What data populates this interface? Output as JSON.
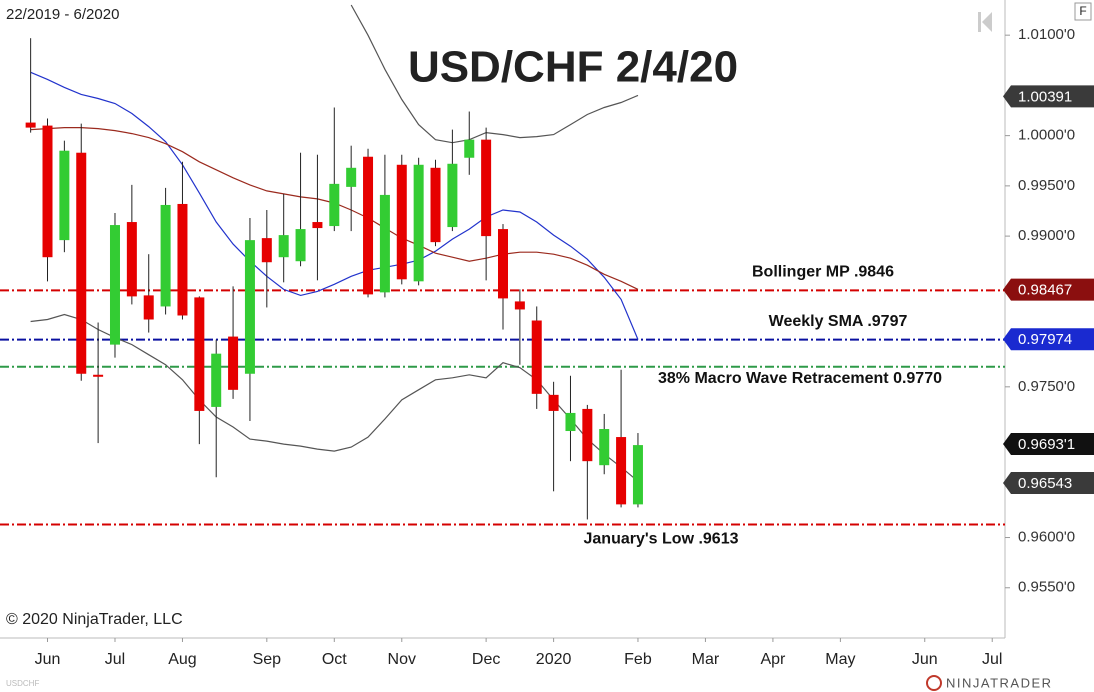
{
  "chart_data": {
    "type": "candlestick",
    "title": "USD/CHF 2/4/20",
    "subtitle": "22/2019 - 6/2020",
    "copyright": "© 2020 NinjaTrader, LLC",
    "instrument": "USDCHF",
    "brand": "NINJATRADER",
    "badge": "F",
    "categories": [
      null,
      "Jun",
      null,
      null,
      null,
      "Jul",
      null,
      null,
      null,
      "Aug",
      null,
      null,
      null,
      null,
      "Sep",
      null,
      null,
      null,
      "Oct",
      null,
      null,
      null,
      "Nov",
      null,
      null,
      null,
      null,
      "Dec",
      null,
      null,
      null,
      "2020",
      null,
      null,
      null,
      null,
      "Feb",
      null,
      null,
      null,
      "Mar",
      null,
      null,
      null,
      "Apr",
      null,
      null,
      null,
      "May",
      null,
      null,
      null,
      null,
      "Jun",
      null,
      null,
      null,
      "Jul"
    ],
    "open": [
      1.0013,
      1.001,
      0.9896,
      0.9983,
      0.9762,
      0.9792,
      0.9914,
      0.9841,
      0.983,
      0.9932,
      0.9839,
      0.973,
      0.98,
      0.9763,
      0.9898,
      0.9879,
      0.9875,
      0.9914,
      0.991,
      0.9949,
      0.9979,
      0.9844,
      0.9971,
      0.9855,
      0.9968,
      0.9909,
      0.9978,
      0.9996,
      0.9907,
      0.9835,
      0.9816,
      0.9742,
      0.9706,
      0.9728,
      0.9672,
      0.97,
      0.9633,
      null,
      null,
      null,
      null,
      null,
      null,
      null,
      null,
      null,
      null,
      null,
      null,
      null,
      null,
      null,
      null,
      null,
      null,
      null,
      null,
      null
    ],
    "high": [
      1.0097,
      1.0017,
      0.9995,
      1.0012,
      0.9814,
      0.9923,
      0.9951,
      0.9882,
      0.9948,
      0.9974,
      0.984,
      0.9797,
      0.985,
      0.9918,
      0.9926,
      0.9942,
      0.9983,
      0.9981,
      1.0028,
      0.999,
      0.9987,
      0.9981,
      0.9981,
      0.9978,
      0.9976,
      1.0006,
      1.0024,
      1.0008,
      0.9912,
      0.9847,
      0.983,
      0.9755,
      0.9761,
      0.9732,
      0.9723,
      0.9767,
      0.9704,
      null,
      null,
      null,
      null,
      null,
      null,
      null,
      null,
      null,
      null,
      null,
      null,
      null,
      null,
      null,
      null,
      null,
      null,
      null,
      null,
      null
    ],
    "low": [
      1.0003,
      0.9855,
      0.9884,
      0.9756,
      0.9694,
      0.9779,
      0.9832,
      0.9804,
      0.9822,
      0.9817,
      0.9693,
      0.966,
      0.9738,
      0.9716,
      0.9829,
      0.9854,
      0.987,
      0.9856,
      0.9905,
      0.9905,
      0.9839,
      0.9839,
      0.9852,
      0.9851,
      0.989,
      0.9905,
      0.9961,
      0.9856,
      0.9807,
      0.9772,
      0.9728,
      0.9646,
      0.9676,
      0.9618,
      0.9663,
      0.963,
      0.963,
      null,
      null,
      null,
      null,
      null,
      null,
      null,
      null,
      null,
      null,
      null,
      null,
      null,
      null,
      null,
      null,
      null,
      null,
      null,
      null,
      null
    ],
    "close": [
      1.0008,
      0.9879,
      0.9985,
      0.9763,
      0.976,
      0.9911,
      0.984,
      0.9817,
      0.9931,
      0.9821,
      0.9726,
      0.9783,
      0.9747,
      0.9896,
      0.9874,
      0.9901,
      0.9907,
      0.9908,
      0.9952,
      0.9968,
      0.9842,
      0.9941,
      0.9857,
      0.9971,
      0.9894,
      0.9972,
      0.9996,
      0.99,
      0.9838,
      0.9827,
      0.9743,
      0.9726,
      0.9724,
      0.9676,
      0.9708,
      0.9633,
      0.9692,
      null,
      null,
      null,
      null,
      null,
      null,
      null,
      null,
      null,
      null,
      null,
      null,
      null,
      null,
      null,
      null,
      null,
      null,
      null,
      null,
      null
    ],
    "up_color": "#33cc33",
    "down_color": "#e60000",
    "wick_color": "#222222",
    "lines": [
      {
        "color": "#2233cc",
        "values": [
          1.0063,
          1.0056,
          1.0048,
          1.0041,
          1.0037,
          1.0032,
          1.0022,
          1.0009,
          0.9994,
          0.9971,
          0.9943,
          0.9914,
          0.9892,
          0.9875,
          0.986,
          0.9847,
          0.9841,
          0.9845,
          0.9852,
          0.986,
          0.9866,
          0.9869,
          0.9872,
          0.9876,
          0.9885,
          0.9897,
          0.9907,
          0.9919,
          0.9926,
          0.9924,
          0.9914,
          0.9901,
          0.989,
          0.9877,
          0.9859,
          0.9837,
          0.9797,
          null,
          null,
          null,
          null,
          null,
          null,
          null,
          null,
          null,
          null,
          null,
          null,
          null,
          null,
          null,
          null,
          null,
          null,
          null,
          null,
          null
        ]
      },
      {
        "color": "#9b2a1e",
        "values": [
          1.0006,
          1.0007,
          1.0008,
          1.0008,
          1.0007,
          1.0005,
          1.0002,
          0.9998,
          0.9992,
          0.9984,
          0.9974,
          0.9966,
          0.9958,
          0.9951,
          0.9945,
          0.9942,
          0.9939,
          0.9937,
          0.9933,
          0.9926,
          0.9918,
          0.9908,
          0.9898,
          0.9891,
          0.9883,
          0.9879,
          0.9875,
          0.9878,
          0.9882,
          0.9884,
          0.9884,
          0.9882,
          0.9878,
          0.9871,
          0.9862,
          0.9855,
          0.9847,
          null,
          null,
          null,
          null,
          null,
          null,
          null,
          null,
          null,
          null,
          null,
          null,
          null,
          null,
          null,
          null,
          null,
          null,
          null,
          null,
          null
        ]
      },
      {
        "color": "#555555",
        "values": [
          null,
          null,
          null,
          null,
          null,
          null,
          null,
          null,
          null,
          null,
          null,
          null,
          null,
          null,
          null,
          null,
          null,
          null,
          null,
          1.013,
          1.01,
          1.0066,
          1.0036,
          1.0011,
          0.9996,
          0.9993,
          0.9996,
          1.0003,
          1.0001,
          0.9998,
          0.9999,
          1.0001,
          1.0011,
          1.0021,
          1.0028,
          1.0033,
          1.004,
          null,
          null,
          null,
          null,
          null,
          null,
          null,
          null,
          null,
          null,
          null,
          null,
          null,
          null,
          null,
          null,
          null,
          null,
          null,
          null,
          null
        ]
      },
      {
        "color": "#555555",
        "values": [
          0.9815,
          0.9817,
          0.9822,
          0.9817,
          0.9807,
          0.9799,
          0.9792,
          0.9782,
          0.9772,
          0.9757,
          0.9737,
          0.972,
          0.971,
          0.9698,
          0.9696,
          0.9693,
          0.9691,
          0.9688,
          0.9686,
          0.969,
          0.97,
          0.9718,
          0.9737,
          0.9747,
          0.9757,
          0.9759,
          0.9762,
          0.9759,
          0.9774,
          0.9769,
          0.9757,
          0.9737,
          0.9718,
          0.9698,
          0.9683,
          0.967,
          0.9656,
          null,
          null,
          null,
          null,
          null,
          null,
          null,
          null,
          null,
          null,
          null,
          null,
          null,
          null,
          null,
          null,
          null,
          null,
          null,
          null,
          null
        ]
      }
    ],
    "hlines": [
      {
        "value": 0.9846,
        "label": "Bollinger MP .9846",
        "color": "#d40000"
      },
      {
        "value": 0.9797,
        "label": "Weekly SMA .9797",
        "color": "#0a10a0"
      },
      {
        "value": 0.977,
        "label": "38% Macro Wave Retracement 0.9770",
        "color": "#2e9a48"
      },
      {
        "value": 0.9613,
        "label": "January's Low .9613",
        "color": "#d40000"
      }
    ],
    "price_markers": [
      {
        "value": 1.00391,
        "label": "1.00391",
        "color": "#3a3a3a"
      },
      {
        "value": 0.98467,
        "label": "0.98467",
        "color": "#8b0f0f"
      },
      {
        "value": 0.97974,
        "label": "0.97974",
        "color": "#1a2ad0"
      },
      {
        "value": 0.96931,
        "label": "0.9693'1",
        "color": "#111111"
      },
      {
        "value": 0.96543,
        "label": "0.96543",
        "color": "#3a3a3a"
      }
    ],
    "ylim": [
      0.95,
      1.0135
    ],
    "yticks": [
      {
        "value": 1.01,
        "label": "1.0100'0"
      },
      {
        "value": 1.0,
        "label": "1.0000'0"
      },
      {
        "value": 0.995,
        "label": "0.9950'0"
      },
      {
        "value": 0.99,
        "label": "0.9900'0"
      },
      {
        "value": 0.975,
        "label": "0.9750'0"
      },
      {
        "value": 0.96,
        "label": "0.9600'0"
      },
      {
        "value": 0.955,
        "label": "0.9550'0"
      }
    ]
  }
}
